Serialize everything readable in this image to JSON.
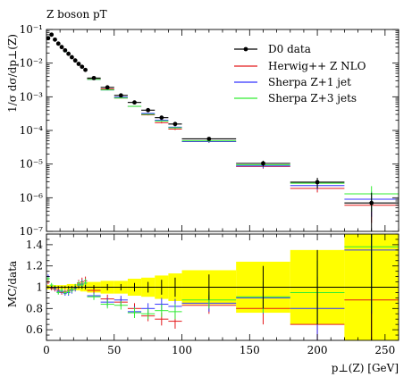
{
  "chart_data": {
    "type": "scatter",
    "title": "Z boson pT",
    "xlabel": "p⊥(Z) [GeV]",
    "xlim": [
      0,
      260
    ],
    "x_ticks": [
      0,
      50,
      100,
      150,
      200,
      250
    ],
    "legend_position": "top-right",
    "colors": {
      "d0": "#000000",
      "herwig": "#e41a1c",
      "sherpa1": "#3333ff",
      "sherpa3": "#33ee33",
      "band": "#ffff00"
    },
    "main": {
      "ylabel": "1/σ dσ/dp⊥(Z)",
      "ylim_log10": [
        -7,
        -1
      ],
      "y_tick_labels": [
        "10⁻⁷",
        "10⁻⁶",
        "10⁻⁵",
        "10⁻⁴",
        "10⁻³",
        "10⁻²",
        "10⁻¹"
      ],
      "bins": [
        0,
        2.5,
        5,
        7.5,
        10,
        12.5,
        15,
        17.5,
        20,
        22.5,
        25,
        27.5,
        30,
        40,
        50,
        60,
        70,
        80,
        90,
        100,
        140,
        180,
        220,
        260
      ],
      "series": [
        {
          "key": "d0",
          "name": "D0 data",
          "values": [
            0.055,
            0.07,
            0.05,
            0.038,
            0.03,
            0.024,
            0.019,
            0.015,
            0.012,
            0.0095,
            0.0078,
            0.0063,
            0.0036,
            0.0019,
            0.0011,
            0.00068,
            0.0004,
            0.00024,
            0.000155,
            5.6e-05,
            1.05e-05,
            2.9e-06,
            7e-07
          ]
        },
        {
          "key": "herwig",
          "name": "Herwig++ Z NLO",
          "values": [
            0.058,
            0.069,
            0.049,
            0.036,
            0.028,
            0.023,
            0.018,
            0.014,
            0.0117,
            0.0098,
            0.0082,
            0.0066,
            0.0034,
            0.0017,
            0.00092,
            0.00052,
            0.00029,
            0.00017,
            0.00011,
            4.7e-05,
            8.5e-06,
            1.9e-06,
            6e-07
          ]
        },
        {
          "key": "sherpa1",
          "name": "Sherpa Z+1 jet",
          "values": [
            0.06,
            0.07,
            0.05,
            0.036,
            0.029,
            0.022,
            0.018,
            0.0145,
            0.0118,
            0.0097,
            0.008,
            0.0065,
            0.0033,
            0.0016,
            0.00097,
            0.00052,
            0.00032,
            0.0002,
            0.000125,
            4.7e-05,
            8.8e-06,
            2.3e-06,
            9e-07
          ]
        },
        {
          "key": "sherpa3",
          "name": "Sherpa Z+3 jets",
          "values": [
            0.06,
            0.074,
            0.05,
            0.036,
            0.029,
            0.022,
            0.018,
            0.0145,
            0.0118,
            0.0097,
            0.008,
            0.0065,
            0.0033,
            0.0016,
            0.00092,
            0.00052,
            0.0003,
            0.00019,
            0.00012,
            4.9e-05,
            9.5e-06,
            2.7e-06,
            1.3e-06
          ]
        }
      ],
      "d0_errors_rel": [
        0.01,
        0.01,
        0.01,
        0.01,
        0.01,
        0.01,
        0.01,
        0.01,
        0.01,
        0.01,
        0.01,
        0.02,
        0.02,
        0.03,
        0.03,
        0.04,
        0.05,
        0.07,
        0.09,
        0.12,
        0.2,
        0.35,
        1.0
      ]
    },
    "ratio": {
      "ylabel": "MC/data",
      "ylim": [
        0.5,
        1.5
      ],
      "y_ticks": [
        0.6,
        0.8,
        1.0,
        1.2,
        1.4
      ],
      "y_tick_labels": [
        "0.6",
        "0.8",
        "1",
        "1.2",
        "1.4"
      ],
      "band_halfwidth": [
        0.02,
        0.02,
        0.02,
        0.02,
        0.02,
        0.02,
        0.03,
        0.03,
        0.03,
        0.03,
        0.04,
        0.04,
        0.05,
        0.06,
        0.06,
        0.08,
        0.09,
        0.11,
        0.13,
        0.16,
        0.24,
        0.35,
        0.6
      ],
      "series": [
        {
          "key": "herwig",
          "values": [
            1.05,
            0.99,
            0.98,
            0.97,
            0.95,
            0.96,
            0.97,
            0.98,
            1.0,
            1.04,
            1.05,
            1.06,
            0.97,
            0.89,
            0.86,
            0.8,
            0.73,
            0.7,
            0.68,
            0.83,
            0.8,
            0.65,
            0.88
          ],
          "err": [
            0.02,
            0.02,
            0.02,
            0.02,
            0.02,
            0.02,
            0.03,
            0.03,
            0.03,
            0.03,
            0.04,
            0.04,
            0.03,
            0.04,
            0.04,
            0.05,
            0.05,
            0.06,
            0.07,
            0.08,
            0.15,
            0.3,
            0.6
          ]
        },
        {
          "key": "sherpa1",
          "values": [
            1.1,
            1.0,
            0.99,
            0.96,
            0.96,
            0.94,
            0.95,
            0.97,
            0.99,
            1.02,
            1.03,
            1.04,
            0.92,
            0.86,
            0.88,
            0.77,
            0.8,
            0.84,
            0.82,
            0.85,
            0.9,
            0.8,
            1.35
          ],
          "err": [
            0.02,
            0.02,
            0.02,
            0.02,
            0.02,
            0.02,
            0.03,
            0.03,
            0.03,
            0.03,
            0.04,
            0.04,
            0.03,
            0.04,
            0.04,
            0.05,
            0.05,
            0.06,
            0.07,
            0.08,
            0.15,
            0.3,
            0.6
          ]
        },
        {
          "key": "sherpa3",
          "values": [
            1.08,
            1.02,
            1.0,
            0.95,
            0.97,
            0.95,
            0.96,
            0.98,
            1.0,
            1.03,
            1.02,
            1.04,
            0.91,
            0.84,
            0.83,
            0.76,
            0.75,
            0.78,
            0.77,
            0.88,
            0.91,
            0.95,
            1.38
          ],
          "err": [
            0.02,
            0.02,
            0.02,
            0.02,
            0.02,
            0.02,
            0.03,
            0.03,
            0.03,
            0.03,
            0.04,
            0.04,
            0.03,
            0.04,
            0.04,
            0.05,
            0.05,
            0.06,
            0.07,
            0.08,
            0.15,
            0.3,
            0.6
          ]
        }
      ]
    }
  }
}
